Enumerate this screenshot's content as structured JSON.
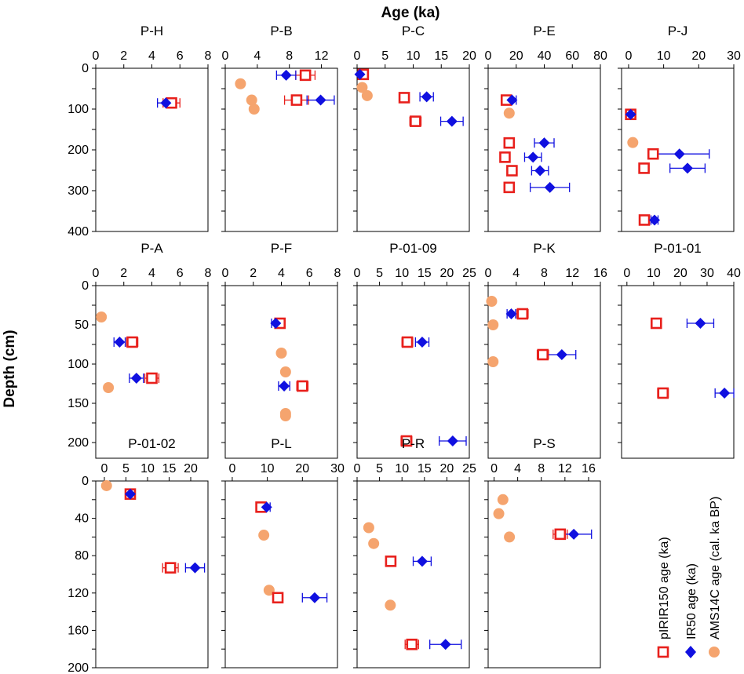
{
  "figure": {
    "x_title": "Age (ka)",
    "y_title": "Depth (cm)"
  },
  "legend": {
    "pIRIR": "pIRIR150 age (ka)",
    "IR50": "IR50 age (ka)",
    "AMS": "AMS14C age (cal. ka BP)"
  },
  "colors": {
    "pIRIR": "#e8201c",
    "IR50": "#1010e0",
    "AMS": "#f5a46e"
  },
  "chart_data": [
    {
      "title": "P-H",
      "type": "scatter",
      "xticks": [
        0,
        2,
        4,
        6,
        8
      ],
      "yticks": [
        0,
        100,
        200,
        300,
        400
      ],
      "xlim": [
        0,
        8
      ],
      "ylim": [
        0,
        400
      ],
      "pIRIR": [
        {
          "x": 5.4,
          "y": 85,
          "err": 0.6
        }
      ],
      "IR50": [
        {
          "x": 5.0,
          "y": 85,
          "err": 0.6
        }
      ],
      "AMS": []
    },
    {
      "title": "P-B",
      "type": "scatter",
      "xticks": [
        0,
        4,
        8,
        12
      ],
      "yticks": [
        0,
        100,
        200,
        300,
        400
      ],
      "xlim": [
        0,
        14
      ],
      "ylim": [
        0,
        400
      ],
      "pIRIR": [
        {
          "x": 10.0,
          "y": 17,
          "err": 1.2
        },
        {
          "x": 8.9,
          "y": 78,
          "err": 1.5
        }
      ],
      "IR50": [
        {
          "x": 7.6,
          "y": 17,
          "err": 1.2
        },
        {
          "x": 11.9,
          "y": 78,
          "err": 1.7
        }
      ],
      "AMS": [
        {
          "x": 1.9,
          "y": 38
        },
        {
          "x": 3.3,
          "y": 78
        },
        {
          "x": 3.6,
          "y": 100
        }
      ]
    },
    {
      "title": "P-C",
      "type": "scatter",
      "xticks": [
        0,
        5,
        10,
        15,
        20
      ],
      "yticks": [
        0,
        100,
        200,
        300,
        400
      ],
      "xlim": [
        0,
        20
      ],
      "ylim": [
        0,
        400
      ],
      "pIRIR": [
        {
          "x": 1.1,
          "y": 15,
          "err": 0.5
        },
        {
          "x": 8.4,
          "y": 72,
          "err": 0.8
        },
        {
          "x": 10.4,
          "y": 130,
          "err": 1.0
        }
      ],
      "IR50": [
        {
          "x": 0.5,
          "y": 15,
          "err": 0.3
        },
        {
          "x": 12.4,
          "y": 70,
          "err": 1.2
        },
        {
          "x": 16.9,
          "y": 130,
          "err": 2.0
        }
      ],
      "AMS": [
        {
          "x": 0.9,
          "y": 47
        },
        {
          "x": 1.8,
          "y": 67
        }
      ]
    },
    {
      "title": "P-E",
      "type": "scatter",
      "xticks": [
        0,
        20,
        40,
        60,
        80
      ],
      "yticks": [
        0,
        100,
        200,
        300,
        400
      ],
      "xlim": [
        0,
        80
      ],
      "ylim": [
        0,
        400
      ],
      "pIRIR": [
        {
          "x": 13,
          "y": 78,
          "err": 2.5
        },
        {
          "x": 15,
          "y": 183,
          "err": 2
        },
        {
          "x": 12,
          "y": 218,
          "err": 2
        },
        {
          "x": 17,
          "y": 251,
          "err": 2
        },
        {
          "x": 15,
          "y": 292,
          "err": 2
        }
      ],
      "IR50": [
        {
          "x": 17,
          "y": 78,
          "err": 3
        },
        {
          "x": 40,
          "y": 183,
          "err": 7
        },
        {
          "x": 32,
          "y": 218,
          "err": 6
        },
        {
          "x": 37,
          "y": 251,
          "err": 6
        },
        {
          "x": 44,
          "y": 292,
          "err": 14
        }
      ],
      "AMS": [
        {
          "x": 15,
          "y": 110
        }
      ]
    },
    {
      "title": "P-J",
      "type": "scatter",
      "xticks": [
        0,
        10,
        20,
        30
      ],
      "yticks": [
        0,
        100,
        200,
        300,
        400
      ],
      "xlim": [
        -2,
        30
      ],
      "ylim": [
        0,
        400
      ],
      "pIRIR": [
        {
          "x": 0.6,
          "y": 113,
          "err": 0.6
        },
        {
          "x": 7.0,
          "y": 210,
          "err": 1.2
        },
        {
          "x": 4.4,
          "y": 245,
          "err": 0.9
        },
        {
          "x": 4.5,
          "y": 372,
          "err": 1.0
        }
      ],
      "IR50": [
        {
          "x": 0.6,
          "y": 113,
          "err": 0.5
        },
        {
          "x": 14.5,
          "y": 210,
          "err": 8.5
        },
        {
          "x": 16.8,
          "y": 245,
          "err": 5.0
        },
        {
          "x": 7.4,
          "y": 372,
          "err": 1.0
        }
      ],
      "AMS": [
        {
          "x": 1.2,
          "y": 182
        }
      ]
    },
    {
      "title": "P-A",
      "type": "scatter",
      "xticks": [
        0,
        2,
        4,
        6,
        8
      ],
      "yticks": [
        0,
        50,
        100,
        150,
        200
      ],
      "xlim": [
        0,
        8
      ],
      "ylim": [
        0,
        220
      ],
      "pIRIR": [
        {
          "x": 2.6,
          "y": 72,
          "err": 0.4
        },
        {
          "x": 4.0,
          "y": 118,
          "err": 0.5
        }
      ],
      "IR50": [
        {
          "x": 1.7,
          "y": 72,
          "err": 0.4
        },
        {
          "x": 2.9,
          "y": 118,
          "err": 0.5
        }
      ],
      "AMS": [
        {
          "x": 0.4,
          "y": 40
        },
        {
          "x": 0.9,
          "y": 130
        }
      ]
    },
    {
      "title": "P-F",
      "type": "scatter",
      "xticks": [
        0,
        2,
        4,
        6,
        8
      ],
      "yticks": [
        0,
        50,
        100,
        150,
        200
      ],
      "xlim": [
        0,
        8
      ],
      "ylim": [
        0,
        220
      ],
      "pIRIR": [
        {
          "x": 3.9,
          "y": 48,
          "err": 0.3
        },
        {
          "x": 5.5,
          "y": 128,
          "err": 0.4
        }
      ],
      "IR50": [
        {
          "x": 3.6,
          "y": 48,
          "err": 0.3
        },
        {
          "x": 4.2,
          "y": 128,
          "err": 0.4
        }
      ],
      "AMS": [
        {
          "x": 4.0,
          "y": 86
        },
        {
          "x": 4.3,
          "y": 110
        },
        {
          "x": 4.3,
          "y": 163
        },
        {
          "x": 4.3,
          "y": 166
        }
      ]
    },
    {
      "title": "P-01-09",
      "type": "scatter",
      "xticks": [
        0,
        5,
        10,
        15,
        20,
        25
      ],
      "yticks": [
        0,
        50,
        100,
        150,
        200
      ],
      "xlim": [
        0,
        25
      ],
      "ylim": [
        0,
        220
      ],
      "pIRIR": [
        {
          "x": 11.2,
          "y": 72,
          "err": 1.2
        },
        {
          "x": 11.0,
          "y": 198,
          "err": 1.2
        }
      ],
      "IR50": [
        {
          "x": 14.5,
          "y": 72,
          "err": 1.5
        },
        {
          "x": 21.3,
          "y": 198,
          "err": 3.0
        }
      ],
      "AMS": []
    },
    {
      "title": "P-K",
      "type": "scatter",
      "xticks": [
        0,
        4,
        8,
        12,
        16
      ],
      "yticks": [
        0,
        50,
        100,
        150,
        200
      ],
      "xlim": [
        0,
        16
      ],
      "ylim": [
        0,
        220
      ],
      "pIRIR": [
        {
          "x": 4.9,
          "y": 36,
          "err": 0.8
        },
        {
          "x": 7.8,
          "y": 88,
          "err": 0.8
        }
      ],
      "IR50": [
        {
          "x": 3.3,
          "y": 36,
          "err": 0.6
        },
        {
          "x": 10.5,
          "y": 88,
          "err": 2.0
        }
      ],
      "AMS": [
        {
          "x": 0.5,
          "y": 20
        },
        {
          "x": 0.7,
          "y": 50
        },
        {
          "x": 0.7,
          "y": 97
        }
      ]
    },
    {
      "title": "P-01-01",
      "type": "scatter",
      "xticks": [
        0,
        10,
        20,
        30,
        40
      ],
      "yticks": [
        0,
        50,
        100,
        150,
        200
      ],
      "xlim": [
        -2,
        40
      ],
      "ylim": [
        0,
        220
      ],
      "pIRIR": [
        {
          "x": 11.0,
          "y": 48,
          "err": 1.0
        },
        {
          "x": 13.5,
          "y": 137,
          "err": 2.0
        }
      ],
      "IR50": [
        {
          "x": 27.5,
          "y": 48,
          "err": 5.0
        },
        {
          "x": 36.5,
          "y": 137,
          "err": 3.5
        }
      ],
      "AMS": []
    },
    {
      "title": "P-01-02",
      "type": "scatter",
      "xticks": [
        0,
        5,
        10,
        15,
        20
      ],
      "yticks": [
        0,
        40,
        80,
        120,
        160,
        200
      ],
      "xlim": [
        -2,
        24
      ],
      "ylim": [
        0,
        200
      ],
      "pIRIR": [
        {
          "x": 6.0,
          "y": 14,
          "err": 1.0
        },
        {
          "x": 15.3,
          "y": 93,
          "err": 1.8
        }
      ],
      "IR50": [
        {
          "x": 6.0,
          "y": 14,
          "err": 1.0
        },
        {
          "x": 21.0,
          "y": 93,
          "err": 2.2
        }
      ],
      "AMS": [
        {
          "x": 0.5,
          "y": 5
        }
      ]
    },
    {
      "title": "P-L",
      "type": "scatter",
      "xticks": [
        0,
        10,
        20,
        30
      ],
      "yticks": [
        0,
        40,
        80,
        120,
        160,
        200
      ],
      "xlim": [
        -2,
        30
      ],
      "ylim": [
        0,
        200
      ],
      "pIRIR": [
        {
          "x": 8.2,
          "y": 28,
          "err": 1.0
        },
        {
          "x": 13.0,
          "y": 125,
          "err": 1.2
        }
      ],
      "IR50": [
        {
          "x": 9.8,
          "y": 28,
          "err": 1.0
        },
        {
          "x": 23.5,
          "y": 125,
          "err": 3.5
        }
      ],
      "AMS": [
        {
          "x": 9.0,
          "y": 58
        },
        {
          "x": 10.5,
          "y": 117
        }
      ]
    },
    {
      "title": "P-R",
      "type": "scatter",
      "xticks": [
        0,
        5,
        10,
        15,
        20,
        25
      ],
      "yticks": [
        0,
        40,
        80,
        120,
        160,
        200
      ],
      "xlim": [
        0,
        25
      ],
      "ylim": [
        0,
        200
      ],
      "pIRIR": [
        {
          "x": 7.5,
          "y": 86,
          "err": 1.0
        },
        {
          "x": 12.2,
          "y": 175,
          "err": 1.5
        }
      ],
      "IR50": [
        {
          "x": 14.5,
          "y": 86,
          "err": 2.0
        },
        {
          "x": 19.7,
          "y": 175,
          "err": 3.5
        }
      ],
      "AMS": [
        {
          "x": 2.6,
          "y": 50
        },
        {
          "x": 3.7,
          "y": 67
        },
        {
          "x": 7.4,
          "y": 133
        }
      ]
    },
    {
      "title": "P-S",
      "type": "scatter",
      "xticks": [
        0,
        4,
        8,
        12,
        16
      ],
      "yticks": [
        0,
        40,
        80,
        120,
        160,
        200
      ],
      "xlim": [
        -1,
        18
      ],
      "ylim": [
        0,
        200
      ],
      "pIRIR": [
        {
          "x": 11.2,
          "y": 57,
          "err": 1.2
        }
      ],
      "IR50": [
        {
          "x": 13.5,
          "y": 57,
          "err": 3.0
        }
      ],
      "AMS": [
        {
          "x": 1.5,
          "y": 20
        },
        {
          "x": 0.8,
          "y": 35
        },
        {
          "x": 2.6,
          "y": 60
        }
      ]
    }
  ]
}
